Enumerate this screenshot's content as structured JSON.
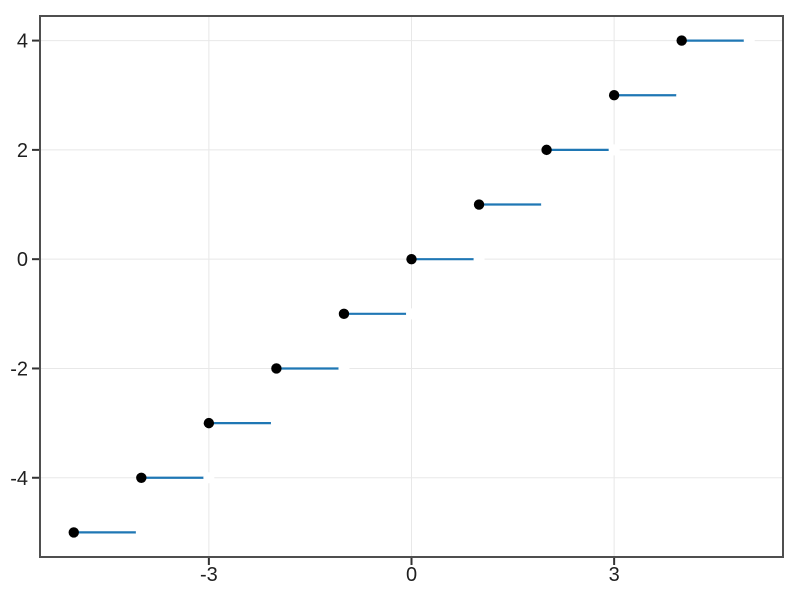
{
  "chart_data": {
    "type": "scatter",
    "subtype": "step-function-floor",
    "title": "",
    "xlabel": "",
    "ylabel": "",
    "grid": true,
    "legend_position": "none",
    "xlim": [
      -5.5,
      5.5
    ],
    "ylim": [
      -5.45,
      4.45
    ],
    "xticks": {
      "values": [
        -3,
        0,
        3
      ],
      "labels": [
        "-3",
        "0",
        "3"
      ]
    },
    "yticks": {
      "values": [
        -4,
        -2,
        0,
        2,
        4
      ],
      "labels": [
        "-4",
        "-2",
        "0",
        "2",
        "4"
      ]
    },
    "points_closed": [
      [
        -5,
        -5
      ],
      [
        -4,
        -4
      ],
      [
        -3,
        -3
      ],
      [
        -2,
        -2
      ],
      [
        -1,
        -1
      ],
      [
        0,
        0
      ],
      [
        1,
        1
      ],
      [
        2,
        2
      ],
      [
        3,
        3
      ],
      [
        4,
        4
      ]
    ],
    "segments": [
      {
        "x1": -5,
        "x2": -4,
        "y": -5
      },
      {
        "x1": -4,
        "x2": -3,
        "y": -4
      },
      {
        "x1": -3,
        "x2": -2,
        "y": -3
      },
      {
        "x1": -2,
        "x2": -1,
        "y": -2
      },
      {
        "x1": -1,
        "x2": 0,
        "y": -1
      },
      {
        "x1": 0,
        "x2": 1,
        "y": 0
      },
      {
        "x1": 1,
        "x2": 2,
        "y": 1
      },
      {
        "x1": 2,
        "x2": 3,
        "y": 2
      },
      {
        "x1": 3,
        "x2": 4,
        "y": 3
      },
      {
        "x1": 4,
        "x2": 5,
        "y": 4
      }
    ],
    "points_open": [
      [
        -4,
        -5
      ],
      [
        -3,
        -4
      ],
      [
        -2,
        -3
      ],
      [
        -1,
        -2
      ],
      [
        0,
        -1
      ],
      [
        1,
        0
      ],
      [
        2,
        1
      ],
      [
        3,
        2
      ],
      [
        4,
        3
      ],
      [
        5,
        4
      ]
    ],
    "colors": {
      "line": "#1f77b4",
      "closed_marker": "#000000",
      "open_marker_face": "#ffffff",
      "grid": "#e8e8e8",
      "frame": "#4f4f4f",
      "tick_mark": "#333333",
      "tick_label": "#1f1f1f",
      "background": "#ffffff"
    }
  }
}
